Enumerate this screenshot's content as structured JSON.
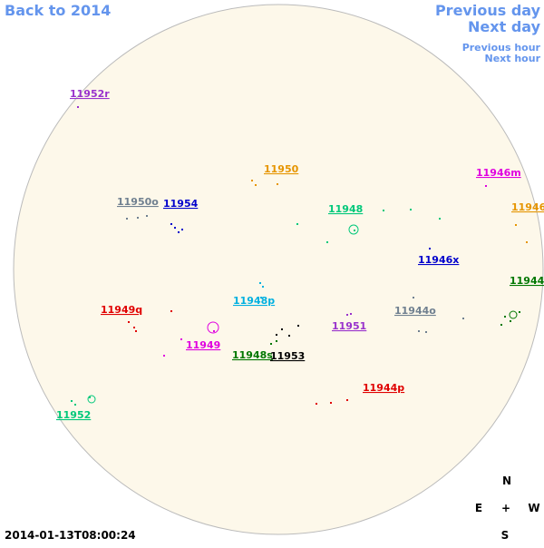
{
  "header": {
    "back": "Back to 2014",
    "previous_day": "Previous day",
    "next_day": "Next day",
    "previous_hour": "Previous hour",
    "next_hour": "Next hour"
  },
  "regions": [
    {
      "label": "11952r",
      "color": "#9932cc"
    },
    {
      "label": "11950",
      "color": "#e69500"
    },
    {
      "label": "11946m",
      "color": "#e000e0"
    },
    {
      "label": "11950o",
      "color": "#708090"
    },
    {
      "label": "11954",
      "color": "#0000cc"
    },
    {
      "label": "11948",
      "color": "#00c87a"
    },
    {
      "label": "11946",
      "color": "#e69500"
    },
    {
      "label": "11946x",
      "color": "#0000cc"
    },
    {
      "label": "11944",
      "color": "#007700"
    },
    {
      "label": "11948p",
      "color": "#00b0e0"
    },
    {
      "label": "11949q",
      "color": "#e00000"
    },
    {
      "label": "11944o",
      "color": "#708090"
    },
    {
      "label": "11951",
      "color": "#9932cc"
    },
    {
      "label": "11949",
      "color": "#e000e0"
    },
    {
      "label": "11948s",
      "color": "#007700"
    },
    {
      "label": "11953",
      "color": "#000000"
    },
    {
      "label": "11944p",
      "color": "#e00000"
    },
    {
      "label": "11952",
      "color": "#00c87a"
    }
  ],
  "compass": {
    "north": "N",
    "east": "E",
    "center": "+",
    "west": "W",
    "south": "S"
  },
  "timestamp": "2014-01-13T08:00:24"
}
